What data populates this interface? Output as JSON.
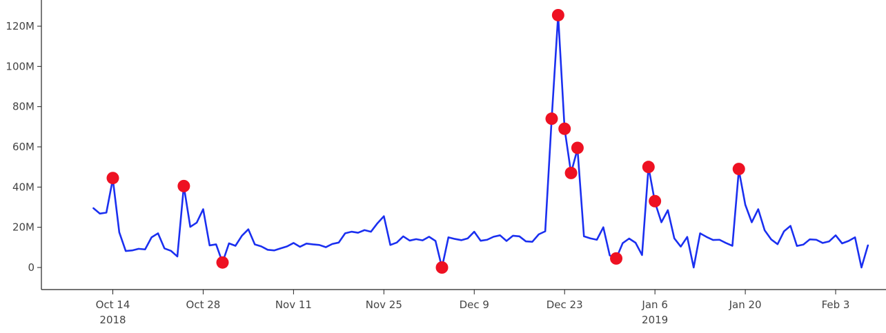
{
  "chart_data": {
    "type": "line",
    "title": "",
    "xlabel": "",
    "ylabel": "",
    "ylim": [
      -11000000,
      130000000
    ],
    "xlim": [
      "2018-10-04",
      "2019-02-10"
    ],
    "grid": false,
    "colors": {
      "line": "#1a2ff0",
      "markers": "#ee1122"
    },
    "y_ticks": [
      {
        "value": 0,
        "label": "0"
      },
      {
        "value": 20000000,
        "label": "20M"
      },
      {
        "value": 40000000,
        "label": "40M"
      },
      {
        "value": 60000000,
        "label": "60M"
      },
      {
        "value": 80000000,
        "label": "80M"
      },
      {
        "value": 100000000,
        "label": "100M"
      },
      {
        "value": 120000000,
        "label": "120M"
      }
    ],
    "x_ticks": [
      {
        "date": "2018-10-14",
        "label": "Oct 14",
        "sublabel": "2018"
      },
      {
        "date": "2018-10-28",
        "label": "Oct 28",
        "sublabel": ""
      },
      {
        "date": "2018-11-11",
        "label": "Nov 11",
        "sublabel": ""
      },
      {
        "date": "2018-11-25",
        "label": "Nov 25",
        "sublabel": ""
      },
      {
        "date": "2018-12-09",
        "label": "Dec 9",
        "sublabel": ""
      },
      {
        "date": "2018-12-23",
        "label": "Dec 23",
        "sublabel": ""
      },
      {
        "date": "2019-01-06",
        "label": "Jan 6",
        "sublabel": "2019"
      },
      {
        "date": "2019-01-20",
        "label": "Jan 20",
        "sublabel": ""
      },
      {
        "date": "2019-02-03",
        "label": "Feb 3",
        "sublabel": ""
      }
    ],
    "series": [
      {
        "x": [
          "2018-10-11",
          "2018-10-12",
          "2018-10-13",
          "2018-10-14",
          "2018-10-15",
          "2018-10-16",
          "2018-10-17",
          "2018-10-18",
          "2018-10-19",
          "2018-10-20",
          "2018-10-21",
          "2018-10-22",
          "2018-10-23",
          "2018-10-24",
          "2018-10-25",
          "2018-10-26",
          "2018-10-27",
          "2018-10-28",
          "2018-10-29",
          "2018-10-30",
          "2018-10-31",
          "2018-11-01",
          "2018-11-02",
          "2018-11-03",
          "2018-11-04",
          "2018-11-05",
          "2018-11-06",
          "2018-11-07",
          "2018-11-08",
          "2018-11-09",
          "2018-11-10",
          "2018-11-11",
          "2018-11-12",
          "2018-11-13",
          "2018-11-14",
          "2018-11-15",
          "2018-11-16",
          "2018-11-17",
          "2018-11-18",
          "2018-11-19",
          "2018-11-20",
          "2018-11-21",
          "2018-11-22",
          "2018-11-23",
          "2018-11-24",
          "2018-11-25",
          "2018-11-26",
          "2018-11-27",
          "2018-11-28",
          "2018-11-29",
          "2018-11-30",
          "2018-12-01",
          "2018-12-02",
          "2018-12-03",
          "2018-12-04",
          "2018-12-05",
          "2018-12-06",
          "2018-12-07",
          "2018-12-08",
          "2018-12-09",
          "2018-12-10",
          "2018-12-11",
          "2018-12-12",
          "2018-12-13",
          "2018-12-14",
          "2018-12-15",
          "2018-12-16",
          "2018-12-17",
          "2018-12-18",
          "2018-12-19",
          "2018-12-20",
          "2018-12-21",
          "2018-12-22",
          "2018-12-23",
          "2018-12-24",
          "2018-12-25",
          "2018-12-26",
          "2018-12-27",
          "2018-12-28",
          "2018-12-29",
          "2018-12-30",
          "2018-12-31",
          "2019-01-01",
          "2019-01-02",
          "2019-01-03",
          "2019-01-04",
          "2019-01-05",
          "2019-01-06",
          "2019-01-07",
          "2019-01-08",
          "2019-01-09",
          "2019-01-10",
          "2019-01-11",
          "2019-01-12",
          "2019-01-13",
          "2019-01-14",
          "2019-01-15",
          "2019-01-16",
          "2019-01-17",
          "2019-01-18",
          "2019-01-19",
          "2019-01-20",
          "2019-01-21",
          "2019-01-22",
          "2019-01-23",
          "2019-01-24",
          "2019-01-25",
          "2019-01-26",
          "2019-01-27",
          "2019-01-28",
          "2019-01-29",
          "2019-01-30",
          "2019-01-31",
          "2019-02-01",
          "2019-02-02",
          "2019-02-03",
          "2019-02-04",
          "2019-02-05",
          "2019-02-06",
          "2019-02-07",
          "2019-02-08"
        ],
        "y": [
          29500000,
          26800000,
          27300000,
          44000000,
          17500000,
          8200000,
          8500000,
          9300000,
          9000000,
          15000000,
          17000000,
          9500000,
          8300000,
          5500000,
          40500000,
          20200000,
          22300000,
          29000000,
          11000000,
          11500000,
          2500000,
          12000000,
          10800000,
          15800000,
          19000000,
          11500000,
          10500000,
          8800000,
          8500000,
          9500000,
          10500000,
          12200000,
          10300000,
          11900000,
          11500000,
          11200000,
          10100000,
          11700000,
          12400000,
          17000000,
          17800000,
          17300000,
          18600000,
          17800000,
          22000000,
          25500000,
          11200000,
          12400000,
          15500000,
          13400000,
          14100000,
          13500000,
          15300000,
          13200000,
          0,
          15000000,
          14200000,
          13600000,
          14500000,
          17800000,
          13300000,
          13800000,
          15300000,
          16000000,
          13200000,
          15800000,
          15500000,
          13000000,
          12800000,
          16500000,
          18000000,
          74000000,
          125500000,
          69000000,
          47000000,
          59000000,
          15500000,
          14500000,
          13800000,
          20000000,
          6000000,
          4500000,
          12100000,
          14400000,
          12300000,
          6200000,
          50000000,
          32500000,
          22500000,
          28500000,
          14500000,
          10400000,
          15200000,
          0,
          17000000,
          15200000,
          13700000,
          13800000,
          12200000,
          10800000,
          48500000,
          31200000,
          22500000,
          29000000,
          18500000,
          14000000,
          11600000,
          18000000,
          20700000,
          10700000,
          11400000,
          14000000,
          13800000,
          12200000,
          13000000,
          16000000,
          12000000,
          13200000,
          15000000,
          0,
          11000000
        ]
      }
    ],
    "highlights": {
      "x": [
        "2018-10-14",
        "2018-10-25",
        "2018-10-31",
        "2018-12-04",
        "2018-12-21",
        "2018-12-22",
        "2018-12-23",
        "2018-12-24",
        "2018-12-25",
        "2018-12-31",
        "2019-01-05",
        "2019-01-06",
        "2019-01-19"
      ],
      "y": [
        44500000,
        40500000,
        2500000,
        0,
        74000000,
        125500000,
        69000000,
        47000000,
        59500000,
        4500000,
        50000000,
        33000000,
        49000000
      ]
    }
  }
}
